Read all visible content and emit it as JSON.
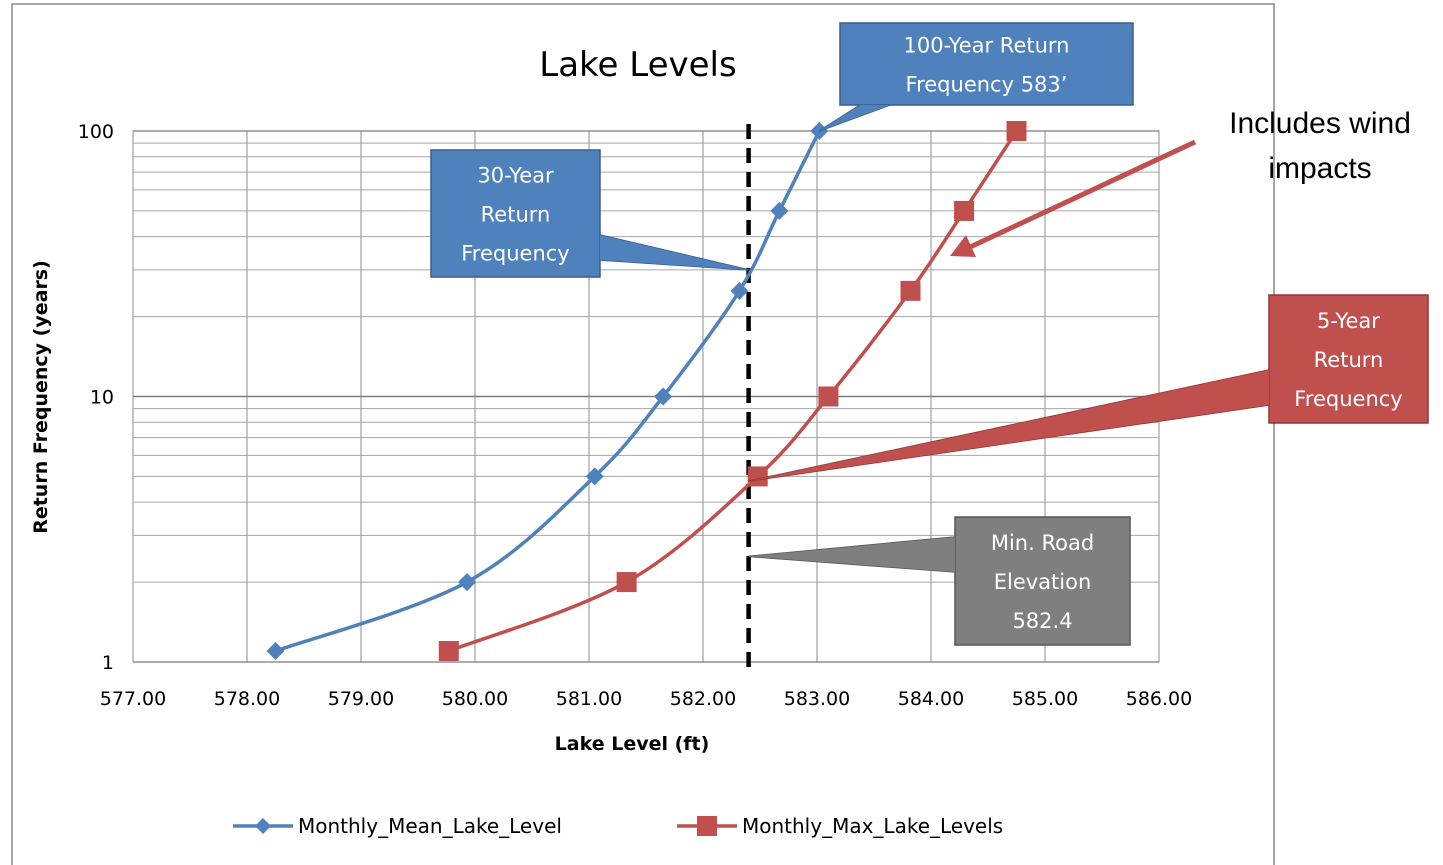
{
  "chart_data": {
    "type": "line",
    "title": "Lake Levels",
    "xlabel": "Lake Level (ft)",
    "ylabel": "Return Frequency (years)",
    "xlim": [
      577.0,
      586.0
    ],
    "ylim": [
      1,
      100
    ],
    "y_scale": "log",
    "x_ticks": [
      "577.00",
      "578.00",
      "579.00",
      "580.00",
      "581.00",
      "582.00",
      "583.00",
      "584.00",
      "585.00",
      "586.00"
    ],
    "y_ticks": [
      "1",
      "10",
      "100"
    ],
    "grid": true,
    "legend_position": "bottom",
    "series": [
      {
        "name": "Monthly_Mean_Lake_Level",
        "color": "#4F81BD",
        "marker": "diamond",
        "points": [
          {
            "x": 578.25,
            "y": 1.1
          },
          {
            "x": 579.93,
            "y": 2
          },
          {
            "x": 581.05,
            "y": 5
          },
          {
            "x": 581.65,
            "y": 10
          },
          {
            "x": 582.32,
            "y": 25
          },
          {
            "x": 582.67,
            "y": 50
          },
          {
            "x": 583.02,
            "y": 100
          }
        ]
      },
      {
        "name": "Monthly_Max_Lake_Levels",
        "color": "#C0504D",
        "marker": "square",
        "points": [
          {
            "x": 579.77,
            "y": 1.1
          },
          {
            "x": 581.33,
            "y": 2
          },
          {
            "x": 582.48,
            "y": 5
          },
          {
            "x": 583.1,
            "y": 10
          },
          {
            "x": 583.82,
            "y": 25
          },
          {
            "x": 584.29,
            "y": 50
          },
          {
            "x": 584.75,
            "y": 100
          }
        ]
      }
    ],
    "reference_line": {
      "x": 582.4,
      "style": "dashed",
      "color": "#000000"
    },
    "annotations": [
      {
        "id": "100yr",
        "lines": [
          "100-Year Return",
          "Frequency 583’"
        ],
        "color": "#4F81BD",
        "points_to": {
          "x": 583.02,
          "y": 100
        }
      },
      {
        "id": "30yr",
        "lines": [
          "30-Year",
          "Return",
          "Frequency"
        ],
        "color": "#4F81BD",
        "points_to": {
          "x": 582.4,
          "y": 30
        }
      },
      {
        "id": "5yr",
        "lines": [
          "5-Year",
          "Return",
          "Frequency"
        ],
        "color": "#C0504D",
        "points_to": {
          "x": 582.4,
          "y": 4.8
        }
      },
      {
        "id": "minroad",
        "lines": [
          "Min. Road",
          "Elevation",
          "582.4"
        ],
        "color": "#7F7F7F",
        "points_to": {
          "x": 582.4,
          "y": 2.5
        }
      }
    ],
    "note": {
      "lines": [
        "Includes wind",
        "impacts"
      ],
      "arrow_color": "#C0504D"
    }
  }
}
